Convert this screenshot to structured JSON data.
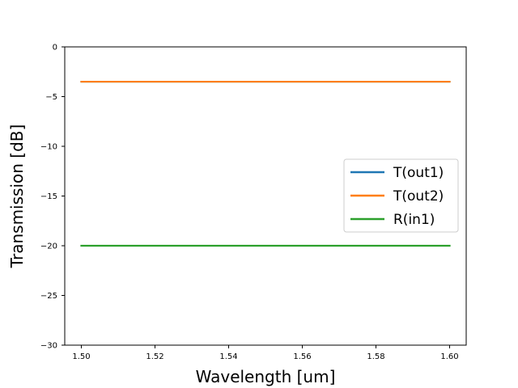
{
  "chart_data": {
    "type": "line",
    "title": "",
    "xlabel": "Wavelength [um]",
    "ylabel": "Transmission [dB]",
    "xlim": [
      1.4955,
      1.6045
    ],
    "ylim": [
      -30,
      0
    ],
    "xticks": [
      1.5,
      1.52,
      1.54,
      1.56,
      1.58,
      1.6
    ],
    "xtick_labels": [
      "1.50",
      "1.52",
      "1.54",
      "1.56",
      "1.58",
      "1.60"
    ],
    "yticks": [
      0,
      -5,
      -10,
      -15,
      -20,
      -25,
      -30
    ],
    "ytick_labels": [
      "0",
      "−5",
      "−10",
      "−15",
      "−20",
      "−25",
      "−30"
    ],
    "grid": false,
    "legend_position": "center-right",
    "series": [
      {
        "name": "T(out1)",
        "color": "#1f77b4",
        "x": [
          1.5,
          1.6
        ],
        "y": [
          -3.5,
          -3.5
        ]
      },
      {
        "name": "T(out2)",
        "color": "#ff7f0e",
        "x": [
          1.5,
          1.6
        ],
        "y": [
          -3.5,
          -3.5
        ]
      },
      {
        "name": "R(in1)",
        "color": "#2ca02c",
        "x": [
          1.5,
          1.6
        ],
        "y": [
          -20,
          -20
        ]
      }
    ]
  }
}
